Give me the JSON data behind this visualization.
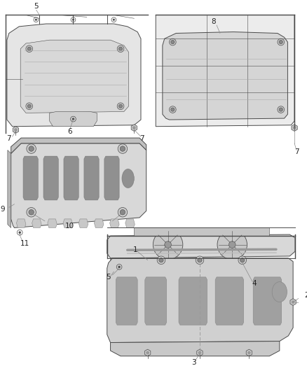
{
  "background_color": "#ffffff",
  "fig_width": 4.38,
  "fig_height": 5.33,
  "dpi": 100,
  "line_color": "#4a4a4a",
  "callout_line_color": "#888888",
  "label_color": "#222222",
  "label_fontsize": 7.5
}
